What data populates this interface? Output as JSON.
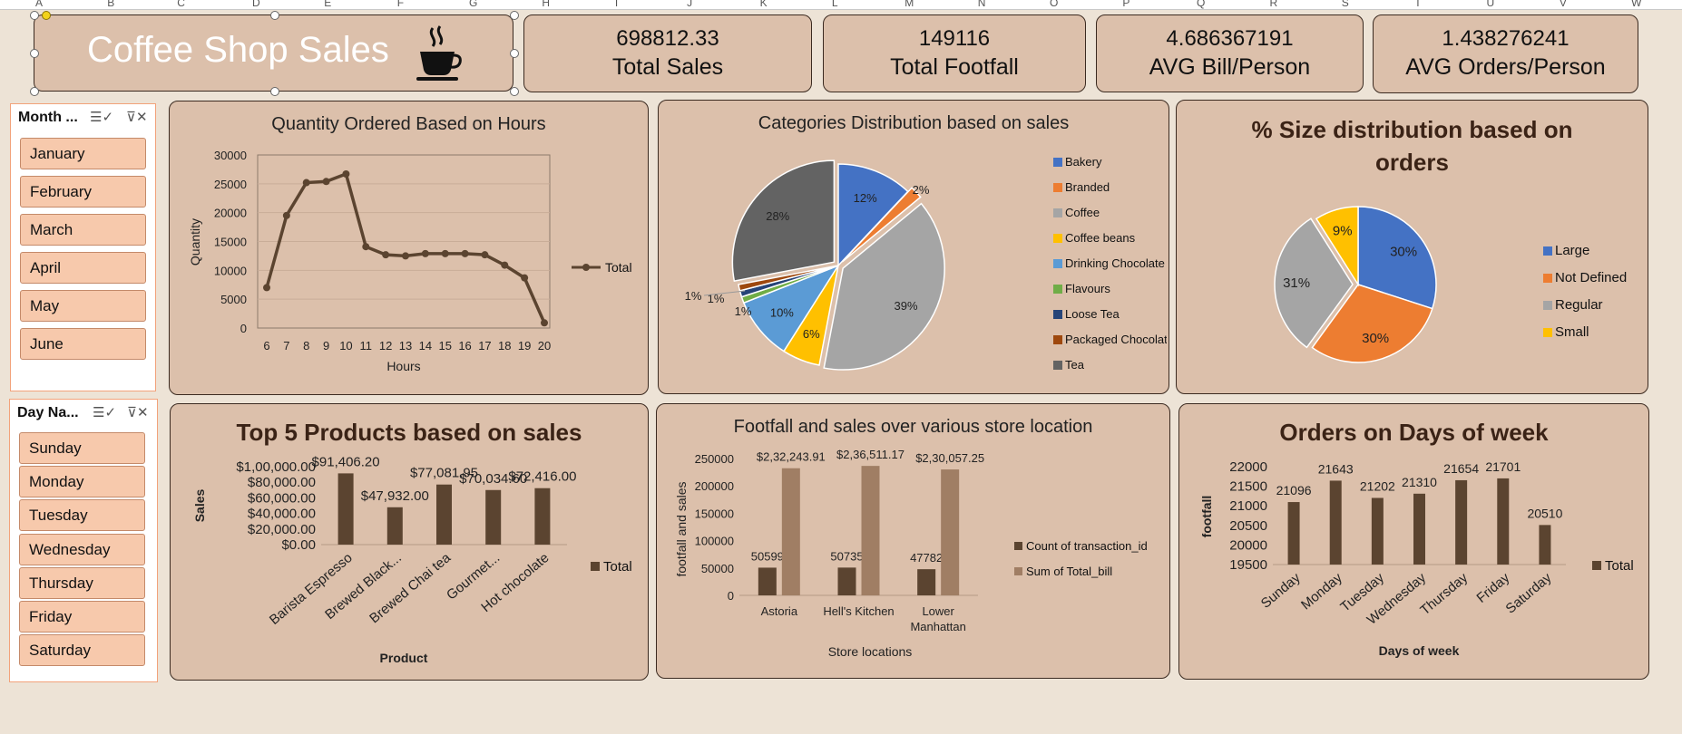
{
  "column_headers": [
    "A",
    "B",
    "C",
    "D",
    "E",
    "F",
    "G",
    "H",
    "I",
    "J",
    "K",
    "L",
    "M",
    "N",
    "O",
    "P",
    "Q",
    "R",
    "S",
    "T",
    "U",
    "V",
    "W"
  ],
  "title_box": {
    "title": "Coffee Shop Sales",
    "icon": "coffee-cup-icon"
  },
  "kpis": [
    {
      "value": "698812.33",
      "label": "Total Sales"
    },
    {
      "value": "149116",
      "label": "Total Footfall"
    },
    {
      "value": "4.686367191",
      "label": "AVG Bill/Person"
    },
    {
      "value": "1.438276241",
      "label": "AVG Orders/Person"
    }
  ],
  "slicers": {
    "month": {
      "header": "Month ...",
      "items": [
        "January",
        "February",
        "March",
        "April",
        "May",
        "June"
      ]
    },
    "day": {
      "header": "Day Na...",
      "items": [
        "Sunday",
        "Monday",
        "Tuesday",
        "Wednesday",
        "Thursday",
        "Friday",
        "Saturday"
      ]
    }
  },
  "colors": {
    "accent_brown": "#5b4430",
    "light_brown": "#a07e64",
    "card_bg": "#dcc0ab",
    "page_bg": "#ede3d6",
    "slicer_btn": "#f7c9ac"
  },
  "chart_data": [
    {
      "type": "line",
      "title": "Quantity Ordered Based on Hours",
      "xlabel": "Hours",
      "ylabel": "Quantity",
      "x": [
        6,
        7,
        8,
        9,
        10,
        11,
        12,
        13,
        14,
        15,
        16,
        17,
        18,
        19,
        20
      ],
      "series": [
        {
          "name": "Total",
          "values": [
            7000,
            19500,
            25200,
            25400,
            26700,
            14100,
            12700,
            12500,
            12900,
            12900,
            12900,
            12700,
            10900,
            8700,
            900
          ]
        }
      ],
      "ylim": [
        0,
        30000
      ],
      "yticks": [
        "0",
        "5000",
        "10000",
        "15000",
        "20000",
        "25000",
        "30000"
      ],
      "legend": "right"
    },
    {
      "type": "pie",
      "title": "Categories Distribution based on sales",
      "categories": [
        "Bakery",
        "Branded",
        "Coffee",
        "Coffee beans",
        "Drinking Chocolate",
        "Flavours",
        "Loose Tea",
        "Packaged Chocolate",
        "Tea"
      ],
      "values": [
        12,
        2,
        39,
        6,
        10,
        1,
        1,
        1,
        28
      ],
      "labels": [
        "12%",
        "2%",
        "39%",
        "6%",
        "10%",
        "1%",
        "1%",
        "1%",
        "28%"
      ],
      "colors": [
        "#4472c4",
        "#ed7d31",
        "#a5a5a5",
        "#ffc000",
        "#5b9bd5",
        "#70ad47",
        "#264478",
        "#9e480e",
        "#636363"
      ],
      "legend": "right"
    },
    {
      "type": "pie",
      "title": "% Size distribution based on orders",
      "categories": [
        "Large",
        "Not Defined",
        "Regular",
        "Small"
      ],
      "values": [
        30,
        30,
        31,
        9
      ],
      "labels": [
        "30%",
        "30%",
        "31%",
        "9%"
      ],
      "colors": [
        "#4472c4",
        "#ed7d31",
        "#a5a5a5",
        "#ffc000"
      ],
      "legend": "right"
    },
    {
      "type": "bar",
      "title": "Top 5 Products based on sales",
      "xlabel": "Product",
      "ylabel": "Sales",
      "categories": [
        "Barista Espresso",
        "Brewed Black...",
        "Brewed Chai tea",
        "Gourmet...",
        "Hot chocolate"
      ],
      "series": [
        {
          "name": "Total",
          "values": [
            91406.2,
            47932.0,
            77081.95,
            70034.6,
            72416.0
          ]
        }
      ],
      "labels": [
        "$91,406.20",
        "$47,932.00",
        "$77,081.95",
        "$70,034.60",
        "$72,416.00"
      ],
      "ylim": [
        0,
        100000
      ],
      "yticks": [
        "$0.00",
        "$20,000.00",
        "$40,000.00",
        "$60,000.00",
        "$80,000.00",
        "$1,00,000.00"
      ],
      "legend": "right"
    },
    {
      "type": "bar",
      "title": "Footfall and sales over various store location",
      "xlabel": "Store locations",
      "ylabel": "footfall and sales",
      "categories": [
        "Astoria",
        "Hell's Kitchen",
        "Lower Manhattan"
      ],
      "series": [
        {
          "name": "Count of transaction_id",
          "values": [
            50599,
            50735,
            47782
          ],
          "labels": [
            "50599",
            "50735",
            "47782"
          ]
        },
        {
          "name": "Sum of Total_bill",
          "values": [
            232243.91,
            236511.17,
            230057.25
          ],
          "labels": [
            "$2,32,243.91",
            "$2,36,511.17",
            "$2,30,057.25"
          ]
        }
      ],
      "ylim": [
        0,
        250000
      ],
      "yticks": [
        "0",
        "50000",
        "100000",
        "150000",
        "200000",
        "250000"
      ],
      "legend": "right"
    },
    {
      "type": "bar",
      "title": "Orders on Days of week",
      "xlabel": "Days of week",
      "ylabel": "footfall",
      "categories": [
        "Sunday",
        "Monday",
        "Tuesday",
        "Wednesday",
        "Thursday",
        "Friday",
        "Saturday"
      ],
      "series": [
        {
          "name": "Total",
          "values": [
            21096,
            21643,
            21202,
            21310,
            21654,
            21701,
            20510
          ]
        }
      ],
      "labels": [
        "21096",
        "21643",
        "21202",
        "21310",
        "21654",
        "21701",
        "20510"
      ],
      "ylim": [
        19500,
        22000
      ],
      "yticks": [
        "19500",
        "20000",
        "20500",
        "21000",
        "21500",
        "22000"
      ],
      "legend": "right"
    }
  ]
}
